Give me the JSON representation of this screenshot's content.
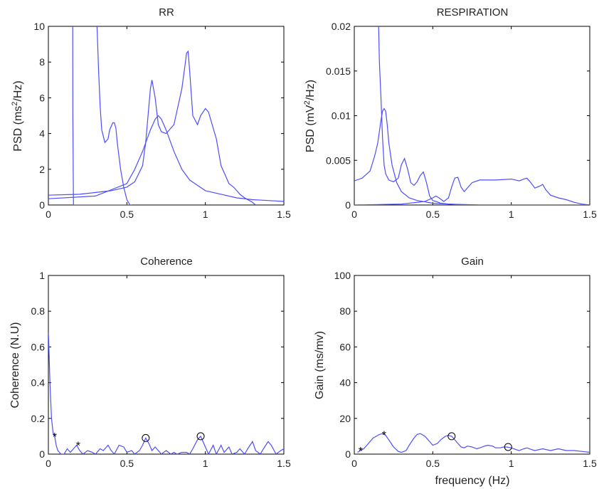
{
  "chart_data": [
    {
      "type": "line",
      "title": "RR",
      "xlabel": "",
      "ylabel": "PSD (ms²/Hz)",
      "ylabel_parts": [
        "PSD (ms",
        "2",
        "/Hz)"
      ],
      "xlim": [
        0,
        1.5
      ],
      "ylim": [
        0,
        10
      ],
      "xticks": [
        0,
        0.5,
        1,
        1.5
      ],
      "xtick_labels": [
        "0",
        "0.5",
        "1",
        "1.5"
      ],
      "yticks": [
        0,
        2,
        4,
        6,
        8,
        10
      ],
      "ytick_labels": [
        "0",
        "2",
        "4",
        "6",
        "8",
        "10"
      ],
      "color": "#4d4dff",
      "series": [
        {
          "x": [
            0.155,
            0.156,
            0.158,
            0.16,
            0.2,
            0.25,
            0.3,
            0.35,
            0.4,
            0.45,
            0.5,
            0.52,
            0.53
          ],
          "y": [
            10,
            5,
            2,
            0,
            0,
            0,
            0,
            0,
            0,
            0,
            0,
            0,
            0
          ]
        },
        {
          "x": [
            0.31,
            0.32,
            0.33,
            0.34,
            0.36,
            0.38,
            0.39,
            0.41,
            0.42,
            0.43,
            0.44,
            0.46,
            0.48,
            0.5,
            0.52
          ],
          "y": [
            10,
            7.5,
            5.5,
            4.2,
            3.5,
            3.7,
            4.2,
            4.6,
            4.6,
            4.3,
            3.4,
            2.0,
            1.0,
            0.3,
            0
          ]
        },
        {
          "x": [
            0,
            0.2,
            0.4,
            0.5,
            0.55,
            0.6,
            0.62,
            0.64,
            0.65,
            0.66,
            0.68,
            0.7,
            0.72,
            0.75,
            0.8,
            0.85,
            0.87,
            0.88,
            0.89,
            0.9,
            0.92,
            0.95,
            0.97,
            1.0,
            1.02,
            1.05,
            1.07,
            1.1,
            1.13,
            1.15,
            1.18,
            1.2,
            1.22,
            1.25,
            1.28,
            1.3,
            1.32
          ],
          "y": [
            0.55,
            0.6,
            0.8,
            1.0,
            1.3,
            2.2,
            3.5,
            5.5,
            6.5,
            7.0,
            6.0,
            4.5,
            4.1,
            4.0,
            4.5,
            6.5,
            7.8,
            8.5,
            8.6,
            7.5,
            5.0,
            4.5,
            5.0,
            5.4,
            5.2,
            4.3,
            3.7,
            2.2,
            1.6,
            1.2,
            1.0,
            0.8,
            0.6,
            0.4,
            0.25,
            0.15,
            0
          ]
        },
        {
          "x": [
            0,
            0.3,
            0.5,
            0.55,
            0.6,
            0.65,
            0.68,
            0.7,
            0.72,
            0.75,
            0.8,
            0.85,
            0.9,
            1.0,
            1.1,
            1.2,
            1.3,
            1.4,
            1.5
          ],
          "y": [
            0.35,
            0.5,
            1.2,
            2.0,
            3.0,
            4.2,
            4.8,
            5.0,
            4.8,
            4.2,
            3.0,
            2.0,
            1.4,
            0.8,
            0.6,
            0.4,
            0.3,
            0.25,
            0.2
          ]
        }
      ]
    },
    {
      "type": "line",
      "title": "RESPIRATION",
      "xlabel": "",
      "ylabel": "PSD (mV²/Hz)",
      "ylabel_parts": [
        "PSD (mV",
        "2",
        "/Hz)"
      ],
      "xlim": [
        0,
        1.5
      ],
      "ylim": [
        0,
        0.02
      ],
      "xticks": [
        0,
        0.5,
        1,
        1.5
      ],
      "xtick_labels": [
        "0",
        "0.5",
        "1",
        "1.5"
      ],
      "yticks": [
        0,
        0.005,
        0.01,
        0.015,
        0.02
      ],
      "ytick_labels": [
        "0",
        "0.005",
        "0.01",
        "0.015",
        "0.02"
      ],
      "color": "#4d4dff",
      "series": [
        {
          "x": [
            0.155,
            0.16,
            0.17,
            0.18,
            0.19,
            0.2,
            0.22,
            0.25,
            0.28,
            0.3,
            0.32,
            0.34,
            0.36,
            0.38,
            0.4,
            0.42,
            0.44,
            0.46,
            0.48,
            0.5,
            0.52,
            0.55,
            0.6,
            0.7,
            0.8,
            1.0,
            1.2,
            1.5
          ],
          "y": [
            0.02,
            0.016,
            0.012,
            0.0075,
            0.0045,
            0.0035,
            0.0028,
            0.0026,
            0.003,
            0.0045,
            0.0052,
            0.004,
            0.0025,
            0.0022,
            0.0026,
            0.0033,
            0.0037,
            0.0025,
            0.001,
            0.0005,
            0.0004,
            0.0002,
            0.0001,
            0,
            0,
            0,
            0,
            0
          ]
        },
        {
          "x": [
            0,
            0.05,
            0.1,
            0.13,
            0.15,
            0.17,
            0.18,
            0.19,
            0.2,
            0.21,
            0.22,
            0.24,
            0.27,
            0.3,
            0.35,
            0.4,
            0.5,
            0.6,
            0.8,
            1.0,
            1.5
          ],
          "y": [
            0.0027,
            0.003,
            0.0038,
            0.0055,
            0.007,
            0.0095,
            0.0105,
            0.0108,
            0.0105,
            0.009,
            0.007,
            0.0045,
            0.0025,
            0.0015,
            0.0008,
            0.0005,
            0.0002,
            0.0001,
            0,
            0,
            0
          ]
        },
        {
          "x": [
            0,
            0.3,
            0.45,
            0.5,
            0.52,
            0.54,
            0.57,
            0.6,
            0.62,
            0.64,
            0.66,
            0.68,
            0.7,
            0.75,
            0.8,
            0.9,
            1.0,
            1.05,
            1.08,
            1.1,
            1.12,
            1.15,
            1.18,
            1.2,
            1.22,
            1.25,
            1.3,
            1.35,
            1.4,
            1.45,
            1.5
          ],
          "y": [
            0,
            0.0001,
            0.0004,
            0.0008,
            0.001,
            0.0008,
            0.0004,
            0.0008,
            0.002,
            0.003,
            0.0031,
            0.002,
            0.0015,
            0.0025,
            0.0028,
            0.0028,
            0.0029,
            0.0027,
            0.0029,
            0.003,
            0.0026,
            0.0019,
            0.0021,
            0.0023,
            0.0017,
            0.0011,
            0.0008,
            0.0006,
            0.0003,
            0.0001,
            0
          ]
        }
      ]
    },
    {
      "type": "line",
      "title": "Coherence",
      "xlabel": "",
      "ylabel": "Coherence (N.U)",
      "xlim": [
        0,
        1.5
      ],
      "ylim": [
        0,
        1
      ],
      "xticks": [
        0,
        0.5,
        1,
        1.5
      ],
      "xtick_labels": [
        "0",
        "0.5",
        "1",
        "1.5"
      ],
      "yticks": [
        0,
        0.2,
        0.4,
        0.6,
        0.8,
        1
      ],
      "ytick_labels": [
        "0",
        "0.2",
        "0.4",
        "0.6",
        "0.8",
        "1"
      ],
      "color": "#4d4dff",
      "series": [
        {
          "x": [
            0,
            0.005,
            0.01,
            0.015,
            0.02,
            0.03,
            0.04,
            0.05,
            0.06,
            0.08,
            0.1,
            0.12,
            0.14,
            0.16,
            0.18,
            0.2,
            0.22,
            0.25,
            0.28,
            0.3,
            0.33,
            0.35,
            0.38,
            0.4,
            0.42,
            0.45,
            0.48,
            0.5,
            0.53,
            0.55,
            0.58,
            0.6,
            0.62,
            0.64,
            0.66,
            0.68,
            0.7,
            0.72,
            0.75,
            0.78,
            0.8,
            0.82,
            0.85,
            0.88,
            0.9,
            0.92,
            0.95,
            0.97,
            1.0,
            1.02,
            1.05,
            1.07,
            1.1,
            1.12,
            1.15,
            1.17,
            1.2,
            1.22,
            1.25,
            1.27,
            1.3,
            1.32,
            1.35,
            1.37,
            1.4,
            1.42,
            1.45,
            1.48,
            1.5
          ],
          "y": [
            0.68,
            0.55,
            0.4,
            0.3,
            0.2,
            0.12,
            0.1,
            0.05,
            0.02,
            0.0,
            0.0,
            0.03,
            0.01,
            0.03,
            0.05,
            0.02,
            0.0,
            0.02,
            0.01,
            0.0,
            0.03,
            0.02,
            0.05,
            0.02,
            0.0,
            0.05,
            0.04,
            0.01,
            0.02,
            0.0,
            0.02,
            0.05,
            0.09,
            0.06,
            0.02,
            0.04,
            0.02,
            0.0,
            0.02,
            0.0,
            0.01,
            0.0,
            0.01,
            0.01,
            0.0,
            0.03,
            0.08,
            0.1,
            0.04,
            0.0,
            0.05,
            0.0,
            0.05,
            0.01,
            0.04,
            0.0,
            0.01,
            0.03,
            0.0,
            0.03,
            0.07,
            0.02,
            0.0,
            0.03,
            0.07,
            0.05,
            0.0,
            0.02,
            0.03
          ]
        }
      ],
      "markers_star": [
        {
          "x": 0.04,
          "y": 0.1
        },
        {
          "x": 0.19,
          "y": 0.05
        }
      ],
      "markers_circle": [
        {
          "x": 0.62,
          "y": 0.09
        },
        {
          "x": 0.97,
          "y": 0.1
        }
      ]
    },
    {
      "type": "line",
      "title": "Gain",
      "xlabel": "frequency (Hz)",
      "ylabel": "Gain (ms/mv)",
      "xlim": [
        0,
        1.5
      ],
      "ylim": [
        0,
        100
      ],
      "xticks": [
        0,
        0.5,
        1,
        1.5
      ],
      "xtick_labels": [
        "0",
        "0.5",
        "1",
        "1.5"
      ],
      "yticks": [
        0,
        20,
        40,
        60,
        80,
        100
      ],
      "ytick_labels": [
        "0",
        "20",
        "40",
        "60",
        "80",
        "100"
      ],
      "color": "#4d4dff",
      "series": [
        {
          "x": [
            0.02,
            0.04,
            0.06,
            0.08,
            0.1,
            0.12,
            0.14,
            0.16,
            0.18,
            0.2,
            0.22,
            0.25,
            0.28,
            0.3,
            0.33,
            0.35,
            0.38,
            0.4,
            0.42,
            0.45,
            0.48,
            0.5,
            0.53,
            0.55,
            0.58,
            0.6,
            0.62,
            0.65,
            0.68,
            0.7,
            0.72,
            0.75,
            0.78,
            0.8,
            0.83,
            0.85,
            0.88,
            0.9,
            0.93,
            0.95,
            0.97,
            1.0,
            1.03,
            1.05,
            1.08,
            1.1,
            1.13,
            1.15,
            1.2,
            1.25,
            1.3,
            1.35,
            1.4,
            1.45,
            1.5
          ],
          "y": [
            1,
            2,
            3,
            5,
            7,
            9,
            10,
            11,
            11.5,
            10.5,
            8,
            4,
            1.5,
            1,
            2,
            5,
            9,
            11,
            11.5,
            10,
            7,
            5,
            6,
            8,
            10,
            10.5,
            10,
            7,
            4,
            3.5,
            4.5,
            4,
            3,
            3.5,
            4.5,
            5,
            4.5,
            3.5,
            3.5,
            4,
            4,
            3.5,
            2.5,
            2,
            3,
            3.5,
            2.5,
            2,
            3,
            2,
            3,
            2,
            2,
            1.5,
            1
          ]
        }
      ],
      "markers_star": [
        {
          "x": 0.04,
          "y": 2
        },
        {
          "x": 0.19,
          "y": 11
        }
      ],
      "markers_circle": [
        {
          "x": 0.62,
          "y": 10
        },
        {
          "x": 0.98,
          "y": 4
        }
      ]
    }
  ]
}
